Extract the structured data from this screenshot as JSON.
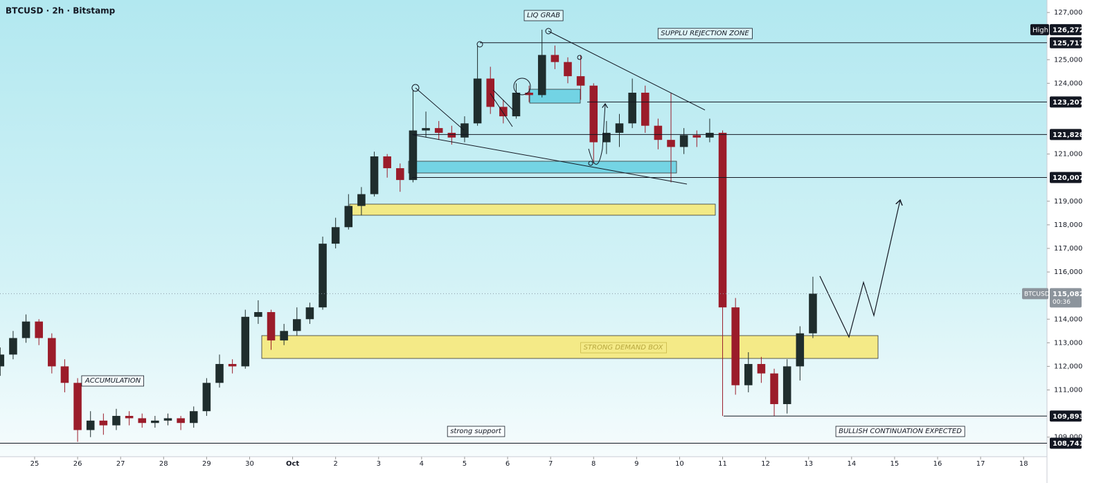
{
  "header": {
    "title": "BTCUSD · 2h · Bitstamp"
  },
  "chart_data": {
    "type": "candlestick",
    "x": [
      -0.8,
      -0.5,
      -0.2,
      0.1,
      0.4,
      0.7,
      1,
      1.3,
      1.6,
      1.9,
      2.2,
      2.5,
      2.8,
      3.1,
      3.4,
      3.7,
      4,
      4.3,
      4.6,
      4.9,
      5.2,
      5.5,
      5.8,
      6.1,
      6.4,
      6.7,
      7,
      7.3,
      7.6,
      7.9,
      8.2,
      8.5,
      8.8,
      9.1,
      9.4,
      9.7,
      10,
      10.3,
      10.6,
      10.9,
      11.2,
      11.5,
      11.8,
      12.1,
      12.4,
      12.7,
      13,
      13.3,
      13.6,
      13.9,
      14.2,
      14.5,
      14.8,
      15.1,
      15.4,
      15.7,
      16,
      16.3,
      16.6,
      16.9,
      17.2,
      17.5,
      17.8,
      18.1
    ],
    "open": [
      112000,
      112500,
      113200,
      113900,
      113200,
      112000,
      111300,
      109300,
      109700,
      109500,
      109900,
      109800,
      109600,
      109700,
      109800,
      109600,
      110100,
      111300,
      112100,
      112000,
      114100,
      114300,
      113100,
      113500,
      114000,
      114500,
      117200,
      117900,
      118800,
      119300,
      120900,
      120400,
      119900,
      122000,
      122100,
      121900,
      121700,
      122300,
      124200,
      123000,
      122600,
      123600,
      123500,
      125200,
      124900,
      124300,
      123900,
      121500,
      121900,
      122300,
      123600,
      122200,
      121600,
      121300,
      121800,
      121700,
      121900,
      114500,
      111200,
      112100,
      111700,
      110400,
      112000,
      113400
    ],
    "high": [
      112800,
      113500,
      114200,
      114000,
      113400,
      112300,
      111500,
      110100,
      110000,
      110200,
      110100,
      110000,
      109900,
      110000,
      109900,
      110300,
      111500,
      112500,
      112300,
      114400,
      114800,
      114400,
      113800,
      114500,
      114700,
      117500,
      118300,
      119300,
      119600,
      121100,
      121000,
      120600,
      123700,
      122800,
      122400,
      122200,
      122600,
      125600,
      124700,
      123300,
      124000,
      123900,
      126272,
      125600,
      125100,
      125200,
      124000,
      122400,
      122700,
      124200,
      123900,
      122500,
      123600,
      122100,
      122000,
      122500,
      122000,
      114900,
      112600,
      112400,
      111900,
      112300,
      113700,
      115800
    ],
    "low": [
      111600,
      112300,
      113000,
      112900,
      111700,
      110900,
      108800,
      109000,
      109100,
      109300,
      109500,
      109400,
      109400,
      109500,
      109300,
      109400,
      109900,
      111100,
      111700,
      111900,
      113800,
      112700,
      112900,
      113300,
      113800,
      114400,
      117000,
      117800,
      118400,
      119200,
      120000,
      119400,
      119800,
      121700,
      121600,
      121400,
      121500,
      122200,
      122700,
      122300,
      122500,
      123200,
      123400,
      124600,
      124000,
      123300,
      120600,
      121000,
      121300,
      122100,
      121900,
      121200,
      119800,
      121000,
      121300,
      121500,
      109893,
      110800,
      110900,
      111300,
      109900,
      110000,
      111400,
      113200
    ],
    "close": [
      112500,
      113200,
      113900,
      113200,
      112000,
      111300,
      109300,
      109700,
      109500,
      109900,
      109800,
      109600,
      109700,
      109800,
      109600,
      110100,
      111300,
      112100,
      112000,
      114100,
      114300,
      113100,
      113500,
      114000,
      114500,
      117200,
      117900,
      118800,
      119300,
      120900,
      120400,
      119900,
      122000,
      122100,
      121900,
      121700,
      122300,
      124200,
      123000,
      122600,
      123600,
      123500,
      125200,
      124900,
      124300,
      123900,
      121500,
      121900,
      122300,
      123600,
      122200,
      121600,
      121300,
      121800,
      121700,
      121900,
      114500,
      111200,
      112100,
      111700,
      110400,
      112000,
      113400,
      115082
    ],
    "up_color": "#1f2d2d",
    "down_color": "#9b1c2a",
    "xlim": [
      -0.805,
      23.544
    ],
    "ylim": [
      108170,
      127530
    ],
    "xticks": [
      {
        "value": 0,
        "label": "25"
      },
      {
        "value": 1,
        "label": "26"
      },
      {
        "value": 2,
        "label": "27"
      },
      {
        "value": 3,
        "label": "28"
      },
      {
        "value": 4,
        "label": "29"
      },
      {
        "value": 5,
        "label": "30"
      },
      {
        "value": 6,
        "label": "Oct"
      },
      {
        "value": 7,
        "label": "2"
      },
      {
        "value": 8,
        "label": "3"
      },
      {
        "value": 9,
        "label": "4"
      },
      {
        "value": 10,
        "label": "5"
      },
      {
        "value": 11,
        "label": "6"
      },
      {
        "value": 12,
        "label": "7"
      },
      {
        "value": 13,
        "label": "8"
      },
      {
        "value": 14,
        "label": "9"
      },
      {
        "value": 15,
        "label": "10"
      },
      {
        "value": 16,
        "label": "11"
      },
      {
        "value": 17,
        "label": "12"
      },
      {
        "value": 18,
        "label": "13"
      },
      {
        "value": 19,
        "label": "14"
      },
      {
        "value": 20,
        "label": "15"
      },
      {
        "value": 21,
        "label": "16"
      },
      {
        "value": 22,
        "label": "17"
      },
      {
        "value": 23,
        "label": "18"
      }
    ],
    "yticks": [
      {
        "value": 127000,
        "label": "127,000"
      },
      {
        "value": 125000,
        "label": "125,000"
      },
      {
        "value": 124000,
        "label": "124,000"
      },
      {
        "value": 121000,
        "label": "121,000"
      },
      {
        "value": 119000,
        "label": "119,000"
      },
      {
        "value": 118000,
        "label": "118,000"
      },
      {
        "value": 117000,
        "label": "117,000"
      },
      {
        "value": 116000,
        "label": "116,000"
      },
      {
        "value": 114000,
        "label": "114,000"
      },
      {
        "value": 113000,
        "label": "113,000"
      },
      {
        "value": 112000,
        "label": "112,000"
      },
      {
        "value": 111000,
        "label": "111,000"
      },
      {
        "value": 109000,
        "label": "109,000"
      }
    ],
    "price_labels": [
      {
        "value": 126272,
        "label": "126,272",
        "tag": "High"
      },
      {
        "value": 125717,
        "label": "125,717"
      },
      {
        "value": 123207,
        "label": "123,207"
      },
      {
        "value": 121828,
        "label": "121,828"
      },
      {
        "value": 120007,
        "label": "120,007"
      },
      {
        "value": 109893,
        "label": "109,893"
      },
      {
        "value": 108741,
        "label": "108,741"
      }
    ],
    "last_price": {
      "value": 115082,
      "label": "115,082",
      "symbol": "BTCUSD",
      "countdown": "00:36"
    },
    "annotations": [
      "LIQ GRAB",
      "SUPPLU REJECTION ZONE",
      "ACCUMULATION",
      "strong support",
      "STRONG DEMAND BOX",
      "BULLISH CONTINUATION EXPECTED"
    ]
  }
}
